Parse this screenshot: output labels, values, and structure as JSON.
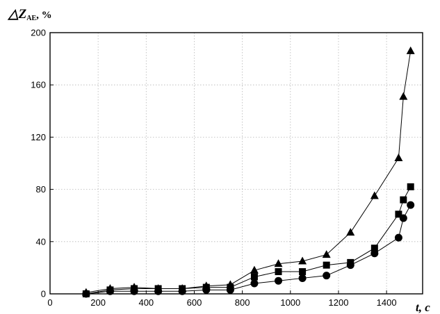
{
  "chart_data": {
    "type": "scatter",
    "title": "",
    "ylabel_symbol": "△Z",
    "ylabel_subscript": "AE",
    "ylabel_unit": ", %",
    "xlabel_var": "t",
    "xlabel_unit": ", c",
    "xlim": [
      0,
      1550
    ],
    "ylim": [
      0,
      200
    ],
    "x_ticks": [
      0,
      200,
      400,
      600,
      800,
      1000,
      1200,
      1400
    ],
    "y_ticks": [
      0,
      40,
      80,
      120,
      160,
      200
    ],
    "grid": true,
    "legend": "none",
    "lines_connected": true,
    "series": [
      {
        "marker": "triangle",
        "color": "#000000",
        "x": [
          150,
          250,
          350,
          450,
          550,
          650,
          750,
          850,
          950,
          1050,
          1150,
          1250,
          1350,
          1450,
          1470,
          1500
        ],
        "y": [
          1,
          4,
          5,
          4,
          4,
          6,
          7,
          18,
          23,
          25,
          30,
          47,
          75,
          104,
          151,
          186
        ]
      },
      {
        "marker": "square",
        "color": "#000000",
        "x": [
          150,
          250,
          350,
          450,
          550,
          650,
          750,
          850,
          950,
          1050,
          1150,
          1250,
          1350,
          1450,
          1470,
          1500
        ],
        "y": [
          0,
          3,
          4,
          4,
          4,
          5,
          5,
          13,
          17,
          17,
          22,
          24,
          35,
          61,
          72,
          82
        ]
      },
      {
        "marker": "circle",
        "color": "#000000",
        "x": [
          150,
          250,
          350,
          450,
          550,
          650,
          750,
          850,
          950,
          1050,
          1150,
          1250,
          1350,
          1450,
          1470,
          1500
        ],
        "y": [
          0,
          2,
          2,
          2,
          2,
          3,
          3,
          8,
          10,
          12,
          14,
          22,
          31,
          43,
          58,
          68
        ]
      }
    ]
  }
}
